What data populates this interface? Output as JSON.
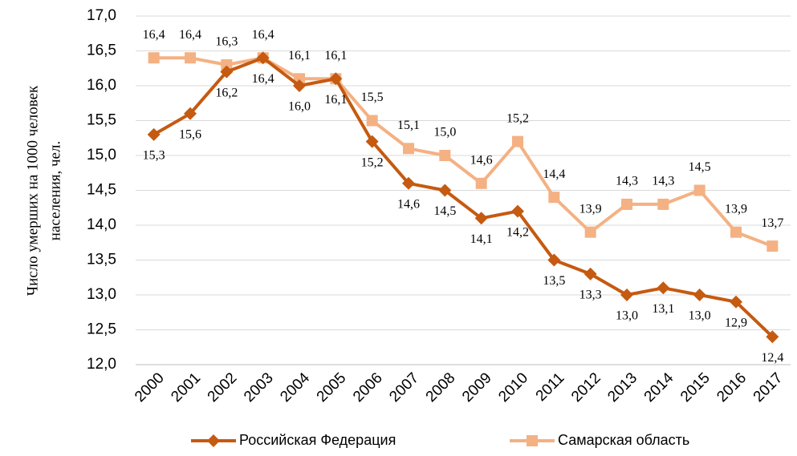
{
  "chart_data": {
    "type": "line",
    "ylabel": [
      "Число умерших на 1000 человек",
      "населения, чел."
    ],
    "categories": [
      "2000",
      "2001",
      "2002",
      "2003",
      "2004",
      "2005",
      "2006",
      "2007",
      "2008",
      "2009",
      "2010",
      "2011",
      "2012",
      "2013",
      "2014",
      "2015",
      "2016",
      "2017"
    ],
    "series": [
      {
        "name": "Российская Федерация",
        "color": "#c55a11",
        "marker": "diamond",
        "values": [
          15.3,
          15.6,
          16.2,
          16.4,
          16.0,
          16.1,
          15.2,
          14.6,
          14.5,
          14.1,
          14.2,
          13.5,
          13.3,
          13.0,
          13.1,
          13.0,
          12.9,
          12.4
        ],
        "value_labels": [
          "15,3",
          "15,6",
          "16,2",
          "16,4",
          "16,0",
          "16,1",
          "15,2",
          "14,6",
          "14,5",
          "14,1",
          "14,2",
          "13,5",
          "13,3",
          "13,0",
          "13,1",
          "13,0",
          "12,9",
          "12,4"
        ]
      },
      {
        "name": "Самарская область",
        "color": "#f4b183",
        "marker": "square",
        "values": [
          16.4,
          16.4,
          16.3,
          16.4,
          16.1,
          16.1,
          15.5,
          15.1,
          15.0,
          14.6,
          15.2,
          14.4,
          13.9,
          14.3,
          14.3,
          14.5,
          13.9,
          13.7
        ],
        "value_labels": [
          "16,4",
          "16,4",
          "16,3",
          "16,4",
          "16,1",
          "16,1",
          "15,5",
          "15,1",
          "15,0",
          "14,6",
          "15,2",
          "14,4",
          "13,9",
          "14,3",
          "14,3",
          "14,5",
          "13,9",
          "13,7"
        ]
      }
    ],
    "ylim": [
      12,
      17
    ],
    "yticks": [
      {
        "value": 12,
        "label": "12,0"
      },
      {
        "value": 12.5,
        "label": "12,5"
      },
      {
        "value": 13,
        "label": "13,0"
      },
      {
        "value": 13.5,
        "label": "13,5"
      },
      {
        "value": 14,
        "label": "14,0"
      },
      {
        "value": 14.5,
        "label": "14,5"
      },
      {
        "value": 15,
        "label": "15,0"
      },
      {
        "value": 15.5,
        "label": "15,5"
      },
      {
        "value": 16,
        "label": "16,0"
      },
      {
        "value": 16.5,
        "label": "16,5"
      },
      {
        "value": 17,
        "label": "17,0"
      }
    ],
    "grid": true,
    "legend": "bottom"
  }
}
